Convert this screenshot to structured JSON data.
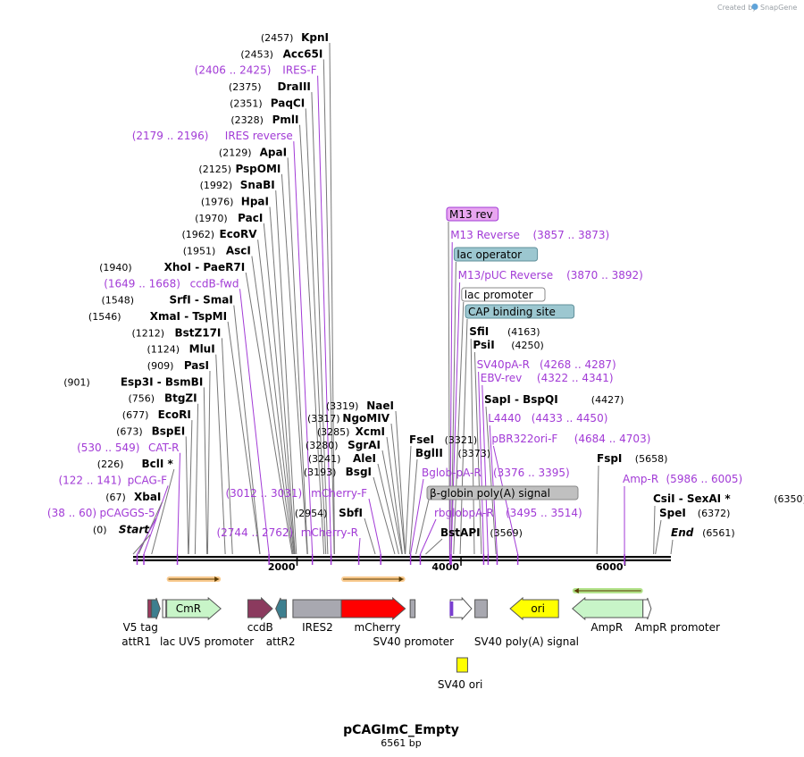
{
  "header": {
    "credit": "Created by",
    "brand": "SnapGene"
  },
  "plasmid": {
    "name": "pCAGImC_Empty",
    "length_label": "6561 bp",
    "length": 6561
  },
  "axis": {
    "ticks": [
      {
        "pos": 2000,
        "label": "2000"
      },
      {
        "pos": 4000,
        "label": "4000"
      },
      {
        "pos": 6000,
        "label": "6000"
      }
    ]
  },
  "left_sites": [
    {
      "pos": "(2457)",
      "name": "KpnI",
      "target": 2457,
      "kind": "enz"
    },
    {
      "pos": "(2453)",
      "name": "Acc65I",
      "target": 2453,
      "kind": "enz"
    },
    {
      "pos": "(2406 .. 2425)",
      "name": "IRES-F",
      "target": 2415,
      "kind": "primer"
    },
    {
      "pos": "(2375)",
      "name": "DraIII",
      "target": 2375,
      "kind": "enz"
    },
    {
      "pos": "(2351)",
      "name": "PaqCI",
      "target": 2351,
      "kind": "enz"
    },
    {
      "pos": "(2328)",
      "name": "PmlI",
      "target": 2328,
      "kind": "enz"
    },
    {
      "pos": "(2179 .. 2196)",
      "name": "IRES reverse",
      "target": 2187,
      "kind": "primer"
    },
    {
      "pos": "(2129)",
      "name": "ApaI",
      "target": 2129,
      "kind": "enz"
    },
    {
      "pos": "(2125)",
      "name": "PspOMI",
      "target": 2125,
      "kind": "enz"
    },
    {
      "pos": "(1992)",
      "name": "SnaBI",
      "target": 1992,
      "kind": "enz"
    },
    {
      "pos": "(1976)",
      "name": "HpaI",
      "target": 1976,
      "kind": "enz"
    },
    {
      "pos": "(1970)",
      "name": "PacI",
      "target": 1970,
      "kind": "enz"
    },
    {
      "pos": "(1962)",
      "name": "EcoRV",
      "target": 1962,
      "kind": "enz"
    },
    {
      "pos": "(1951)",
      "name": "AscI",
      "target": 1951,
      "kind": "enz"
    },
    {
      "pos": "(1940)",
      "name": "XhoI   - PaeR7I",
      "target": 1940,
      "kind": "enz"
    },
    {
      "pos": "(1649 .. 1668)",
      "name": "ccdB-fwd",
      "target": 1658,
      "kind": "primer"
    },
    {
      "pos": "(1548)",
      "name": "SrfI   - SmaI",
      "target": 1548,
      "kind": "enz"
    },
    {
      "pos": "(1546)",
      "name": "XmaI   - TspMI",
      "target": 1546,
      "kind": "enz"
    },
    {
      "pos": "(1212)",
      "name": "BstZ17I",
      "target": 1212,
      "kind": "enz"
    },
    {
      "pos": "(1124)",
      "name": "MluI",
      "target": 1124,
      "kind": "enz"
    },
    {
      "pos": "(909)",
      "name": "PasI",
      "target": 909,
      "kind": "enz"
    },
    {
      "pos": "(901)",
      "name": "Esp3I   - BsmBI",
      "target": 901,
      "kind": "enz"
    },
    {
      "pos": "(756)",
      "name": "BtgZI",
      "target": 756,
      "kind": "enz"
    },
    {
      "pos": "(677)",
      "name": "EcoRI",
      "target": 677,
      "kind": "enz"
    },
    {
      "pos": "(673)",
      "name": "BspEI",
      "target": 673,
      "kind": "enz"
    },
    {
      "pos": "(530 .. 549)",
      "name": "CAT-R",
      "target": 540,
      "kind": "primer"
    },
    {
      "pos": "(226)",
      "name": "BclI *",
      "target": 226,
      "kind": "enz"
    },
    {
      "pos": "(122 .. 141)",
      "name": "pCAG-F",
      "target": 131,
      "kind": "primer"
    },
    {
      "pos": "(67)",
      "name": "XbaI",
      "target": 67,
      "kind": "enz"
    },
    {
      "pos": "(38 .. 60)",
      "name": "pCAGGS-5",
      "target": 49,
      "kind": "primer"
    },
    {
      "pos": "(0)",
      "name": "Start",
      "target": 0,
      "kind": "enzi"
    }
  ],
  "mid_sites": [
    {
      "pos": "(3319)",
      "name": "NaeI",
      "target": 3319,
      "kind": "enz"
    },
    {
      "pos": "(3317)",
      "name": "NgoMIV",
      "target": 3317,
      "kind": "enz"
    },
    {
      "pos": "(3285)",
      "name": "XcmI",
      "target": 3285,
      "kind": "enz"
    },
    {
      "pos": "(3280)",
      "name": "SgrAI",
      "target": 3280,
      "kind": "enz"
    },
    {
      "pos": "(3241)",
      "name": "AleI",
      "target": 3241,
      "kind": "enz"
    },
    {
      "pos": "(3193)",
      "name": "BsgI",
      "target": 3193,
      "kind": "enz"
    },
    {
      "pos": "(3012 .. 3031)",
      "name": "mCherry-F",
      "target": 3021,
      "kind": "primer"
    },
    {
      "pos": "(2954)",
      "name": "SbfI",
      "target": 2954,
      "kind": "enz"
    },
    {
      "pos": "(2744 .. 2762)",
      "name": "mCherry-R",
      "target": 2753,
      "kind": "primer"
    }
  ],
  "right_sites": [
    {
      "pos": "",
      "name": "M13 rev",
      "target": 3862,
      "kind": "box",
      "fill": "#e8a6f0",
      "stroke": "#a23bd6"
    },
    {
      "pos": "(3857 .. 3873)",
      "name": "M13 Reverse",
      "target": 3865,
      "kind": "primer"
    },
    {
      "pos": "",
      "name": "lac operator",
      "target": 3880,
      "kind": "box",
      "fill": "#9cc7d0",
      "stroke": "#5f8f9a"
    },
    {
      "pos": "(3870 .. 3892)",
      "name": "M13/pUC Reverse",
      "target": 3881,
      "kind": "primer"
    },
    {
      "pos": "",
      "name": "lac promoter",
      "target": 3910,
      "kind": "box",
      "fill": "#ffffff",
      "stroke": "#888888"
    },
    {
      "pos": "",
      "name": "CAP binding site",
      "target": 3990,
      "kind": "box",
      "fill": "#9cc7d0",
      "stroke": "#5f8f9a"
    },
    {
      "pos": "(4163)",
      "name": "SfiI",
      "target": 4163,
      "kind": "enz"
    },
    {
      "pos": "(4250)",
      "name": "PsiI",
      "target": 4250,
      "kind": "enz"
    },
    {
      "pos": "(4268 .. 4287)",
      "name": "SV40pA-R",
      "target": 4277,
      "kind": "primer"
    },
    {
      "pos": "(4322 .. 4341)",
      "name": "EBV-rev",
      "target": 4331,
      "kind": "primer"
    },
    {
      "pos": "(4427)",
      "name": "SapI   - BspQI",
      "target": 4427,
      "kind": "enz"
    },
    {
      "pos": "(4433 .. 4450)",
      "name": "L4440",
      "target": 4441,
      "kind": "primer"
    },
    {
      "pos": "(4684 .. 4703)",
      "name": "pBR322ori-F",
      "target": 4693,
      "kind": "primer"
    },
    {
      "pos": "(5658)",
      "name": "FspI",
      "target": 5658,
      "kind": "enz"
    },
    {
      "pos": "(5986 .. 6005)",
      "name": "Amp-R",
      "target": 5995,
      "kind": "primer"
    },
    {
      "pos": "(6350)",
      "name": "CsiI   - SexAI *",
      "target": 6350,
      "kind": "enz"
    },
    {
      "pos": "(6372)",
      "name": "SpeI",
      "target": 6372,
      "kind": "enz"
    },
    {
      "pos": "(6561)",
      "name": "End",
      "target": 6561,
      "kind": "enzi"
    }
  ],
  "center_sites": [
    {
      "pos": "(3321)",
      "name": "FseI",
      "target": 3321,
      "kind": "enz"
    },
    {
      "pos": "(3373)",
      "name": "BglII",
      "target": 3373,
      "kind": "enz"
    },
    {
      "pos": "(3376 .. 3395)",
      "name": "Bglob-pA-R",
      "target": 3385,
      "kind": "primer"
    },
    {
      "pos": "",
      "name": "β-globin poly(A) signal",
      "target": 3450,
      "kind": "box",
      "fill": "#c0c0c0",
      "stroke": "#888888"
    },
    {
      "pos": "(3495 .. 3514)",
      "name": "rbglobpA-R",
      "target": 3504,
      "kind": "primer"
    },
    {
      "pos": "(3569)",
      "name": "BstAPI",
      "target": 3569,
      "kind": "enz"
    }
  ],
  "features": [
    {
      "name": "V5 tag",
      "start": 180,
      "end": 220,
      "color": "#9b3a5e",
      "dir": "box"
    },
    {
      "name": "attR1",
      "start": 225,
      "end": 330,
      "color": "#3d7f8f",
      "dir": "right"
    },
    {
      "name": "lac UV5 promoter",
      "start": 360,
      "end": 400,
      "color": "#ffffff",
      "dir": "box"
    },
    {
      "name": "CmR",
      "start": 410,
      "end": 1070,
      "color": "#c8f5c8",
      "dir": "right"
    },
    {
      "name": "ccdB",
      "start": 1400,
      "end": 1700,
      "color": "#8b3a5e",
      "dir": "right"
    },
    {
      "name": "attR2",
      "start": 1740,
      "end": 1870,
      "color": "#3d7f8f",
      "dir": "left"
    },
    {
      "name": "IRES2",
      "start": 1950,
      "end": 2540,
      "color": "#a8a8b0",
      "dir": "box"
    },
    {
      "name": "mCherry",
      "start": 2540,
      "end": 3320,
      "color": "#ff0000",
      "dir": "right"
    },
    {
      "name": "",
      "start": 3380,
      "end": 3440,
      "color": "#a8a8b0",
      "dir": "box"
    },
    {
      "name": "SV40 promoter",
      "start": 3870,
      "end": 4130,
      "color": "#ffffff",
      "dir": "right"
    },
    {
      "name": "SV40 poly(A) signal",
      "start": 4170,
      "end": 4320,
      "color": "#a8a8b0",
      "dir": "box"
    },
    {
      "name": "ori",
      "start": 4600,
      "end": 5190,
      "color": "#ffff00",
      "dir": "left"
    },
    {
      "name": "AmpR",
      "start": 5360,
      "end": 6220,
      "color": "#c8f5c8",
      "dir": "left"
    },
    {
      "name": "AmpR promoter",
      "start": 6220,
      "end": 6320,
      "color": "#ffffff",
      "dir": "right"
    }
  ],
  "feature_labels": [
    {
      "text": "V5 tag",
      "at": 90,
      "row": 0
    },
    {
      "text": "attR1",
      "at": 40,
      "row": 1
    },
    {
      "text": "lac UV5 promoter",
      "at": 900,
      "row": 1
    },
    {
      "text": "ccdB",
      "at": 1550,
      "row": 0
    },
    {
      "text": "attR2",
      "at": 1800,
      "row": 1
    },
    {
      "text": "IRES2",
      "at": 2250,
      "row": 0
    },
    {
      "text": "mCherry",
      "at": 2980,
      "row": 0
    },
    {
      "text": "SV40 promoter",
      "at": 3420,
      "row": 1
    },
    {
      "text": "SV40 poly(A) signal",
      "at": 4800,
      "row": 1
    },
    {
      "text": "AmpR",
      "at": 5780,
      "row": 0
    },
    {
      "text": "AmpR promoter",
      "at": 6640,
      "row": 0
    },
    {
      "text": "SV40 ori",
      "at": 3990,
      "row": 2
    }
  ]
}
